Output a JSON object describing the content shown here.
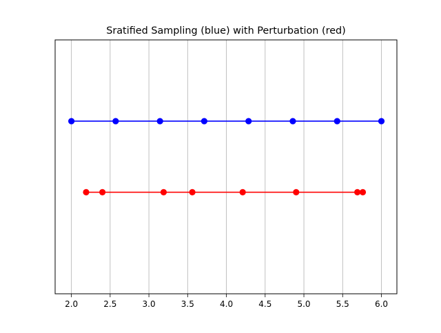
{
  "chart_data": {
    "type": "line",
    "title": "Sratified Sampling (blue) with Perturbation (red)",
    "xlabel": "",
    "ylabel": "",
    "xlim": [
      1.79,
      6.2
    ],
    "ylim": [
      0.0,
      1.0
    ],
    "x_ticks": [
      "2.0",
      "2.5",
      "3.0",
      "3.5",
      "4.0",
      "4.5",
      "5.0",
      "5.5",
      "6.0"
    ],
    "x_tick_values": [
      2.0,
      2.5,
      3.0,
      3.5,
      4.0,
      4.5,
      5.0,
      5.5,
      6.0
    ],
    "grid": "x-only",
    "y_ticks_visible": false,
    "series": [
      {
        "color": "#0000ff",
        "y": 0.68,
        "x": [
          2.0,
          2.571,
          3.143,
          3.714,
          4.286,
          4.857,
          5.429,
          6.0
        ]
      },
      {
        "color": "#ff0000",
        "y": 0.4,
        "x": [
          2.19,
          2.4,
          3.19,
          3.56,
          4.21,
          4.9,
          5.69,
          5.76
        ]
      }
    ]
  }
}
